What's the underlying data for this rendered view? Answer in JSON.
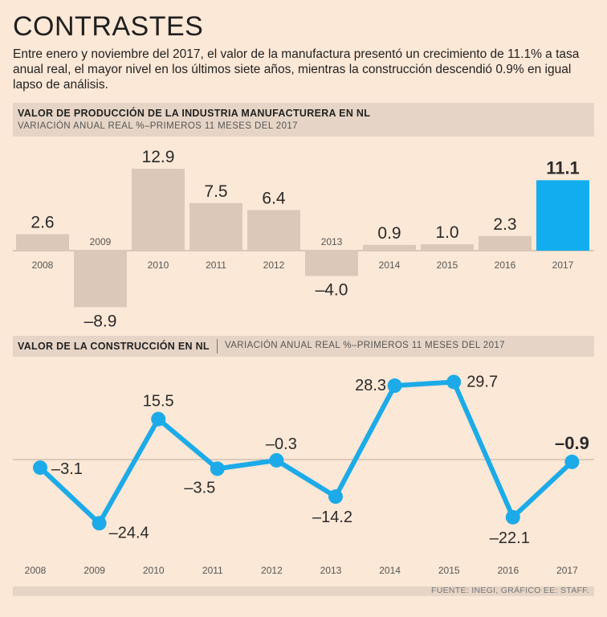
{
  "header": {
    "title": "CONTRASTES",
    "intro": "Entre enero y noviembre del 2017, el valor de la manufactura presentó un crecimiento de 11.1% a tasa anual real, el mayor nivel en los últimos siete años, mientras la construcción descendió 0.9% en igual lapso de análisis."
  },
  "source": "FUENTE: INEGI, GRÁFICO EE: STAFF.",
  "colors": {
    "bar": "#dcc8b8",
    "highlight": "#12adef",
    "line": "#1cabe8"
  },
  "chart_data": [
    {
      "type": "bar",
      "title": "VALOR DE PRODUCCIÓN DE LA INDUSTRIA MANUFACTURERA EN NL",
      "subtitle": "VARIACIÓN ANUAL REAL %–PRIMEROS 11 MESES DEL 2017",
      "categories": [
        "2008",
        "2009",
        "2010",
        "2011",
        "2012",
        "2013",
        "2014",
        "2015",
        "2016",
        "2017"
      ],
      "values": [
        2.6,
        -8.9,
        12.9,
        7.5,
        6.4,
        -4.0,
        0.9,
        1.0,
        2.3,
        11.1
      ],
      "labels": [
        "2.6",
        "–8.9",
        "12.9",
        "7.5",
        "6.4",
        "–4.0",
        "0.9",
        "1.0",
        "2.3",
        "11.1"
      ],
      "highlight": "2017",
      "ylim": [
        -8.9,
        12.9
      ]
    },
    {
      "type": "line",
      "title": "VALOR DE LA CONSTRUCCIÓN EN NL",
      "subtitle": "VARIACIÓN ANUAL REAL %–PRIMEROS 11 MESES DEL 2017",
      "x": [
        "2008",
        "2009",
        "2010",
        "2011",
        "2012",
        "2013",
        "2014",
        "2015",
        "2016",
        "2017"
      ],
      "values": [
        -3.1,
        -24.4,
        15.5,
        -3.5,
        -0.3,
        -14.2,
        28.3,
        29.7,
        -22.1,
        -0.9
      ],
      "labels": [
        "–3.1",
        "–24.4",
        "15.5",
        "–3.5",
        "–0.3",
        "–14.2",
        "28.3",
        "29.7",
        "–22.1",
        "–0.9"
      ],
      "highlight": "2017",
      "ylim": [
        -24.4,
        29.7
      ]
    }
  ]
}
